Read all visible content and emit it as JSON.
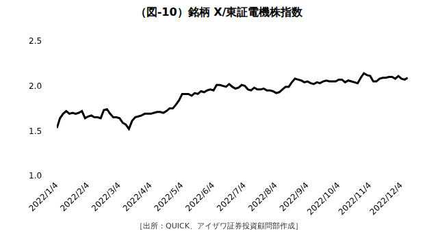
{
  "chart_data": {
    "type": "line",
    "title": "（図-10）銘柄 X/東証電機株指数",
    "source": "［出所：QUICK、アイザワ証券投資顧問部作成］",
    "categories": [
      "2022/1/4",
      null,
      null,
      null,
      null,
      null,
      null,
      null,
      null,
      null,
      "2022/2/4",
      null,
      null,
      null,
      null,
      null,
      null,
      null,
      null,
      null,
      "2022/3/4",
      null,
      null,
      null,
      null,
      null,
      null,
      null,
      null,
      null,
      "2022/4/4",
      null,
      null,
      null,
      null,
      null,
      null,
      null,
      null,
      null,
      "2022/5/4",
      null,
      null,
      null,
      null,
      null,
      null,
      null,
      null,
      null,
      "2022/6/4",
      null,
      null,
      null,
      null,
      null,
      null,
      null,
      null,
      null,
      "2022/7/4",
      null,
      null,
      null,
      null,
      null,
      null,
      null,
      null,
      null,
      "2022/8/4",
      null,
      null,
      null,
      null,
      null,
      null,
      null,
      null,
      null,
      "2022/9/4",
      null,
      null,
      null,
      null,
      null,
      null,
      null,
      null,
      null,
      "2022/10/4",
      null,
      null,
      null,
      null,
      null,
      null,
      null,
      null,
      null,
      "2022/11/4",
      null,
      null,
      null,
      null,
      null,
      null,
      null,
      null,
      null,
      "2022/12/4",
      null,
      null
    ],
    "values": [
      1.54,
      1.65,
      1.7,
      1.73,
      1.7,
      1.71,
      1.7,
      1.71,
      1.73,
      1.65,
      1.67,
      1.68,
      1.66,
      1.66,
      1.65,
      1.74,
      1.75,
      1.7,
      1.66,
      1.66,
      1.65,
      1.6,
      1.58,
      1.53,
      1.62,
      1.66,
      1.67,
      1.68,
      1.7,
      1.7,
      1.7,
      1.71,
      1.72,
      1.72,
      1.71,
      1.73,
      1.76,
      1.76,
      1.8,
      1.85,
      1.92,
      1.92,
      1.92,
      1.9,
      1.93,
      1.92,
      1.95,
      1.94,
      1.96,
      1.97,
      1.96,
      2.02,
      2.02,
      2.01,
      2.0,
      2.03,
      2.0,
      1.98,
      1.99,
      2.02,
      2.01,
      1.97,
      1.96,
      1.99,
      1.97,
      1.97,
      1.98,
      1.96,
      1.96,
      1.95,
      1.93,
      1.94,
      1.97,
      2.0,
      2.0,
      2.05,
      2.09,
      2.08,
      2.07,
      2.05,
      2.06,
      2.04,
      2.03,
      2.05,
      2.04,
      2.06,
      2.07,
      2.06,
      2.06,
      2.06,
      2.08,
      2.08,
      2.05,
      2.07,
      2.06,
      2.05,
      2.04,
      2.1,
      2.15,
      2.13,
      2.12,
      2.06,
      2.06,
      2.09,
      2.1,
      2.1,
      2.11,
      2.11,
      2.09,
      2.12,
      2.09,
      2.08,
      2.1
    ],
    "color": "#000000",
    "ylim": [
      1.0,
      2.5
    ],
    "yticks": [
      {
        "value": 1.0,
        "label": "1.0"
      },
      {
        "value": 1.5,
        "label": "1.5"
      },
      {
        "value": 2.0,
        "label": "2.0"
      },
      {
        "value": 2.5,
        "label": "2.5"
      }
    ],
    "grid": false
  }
}
